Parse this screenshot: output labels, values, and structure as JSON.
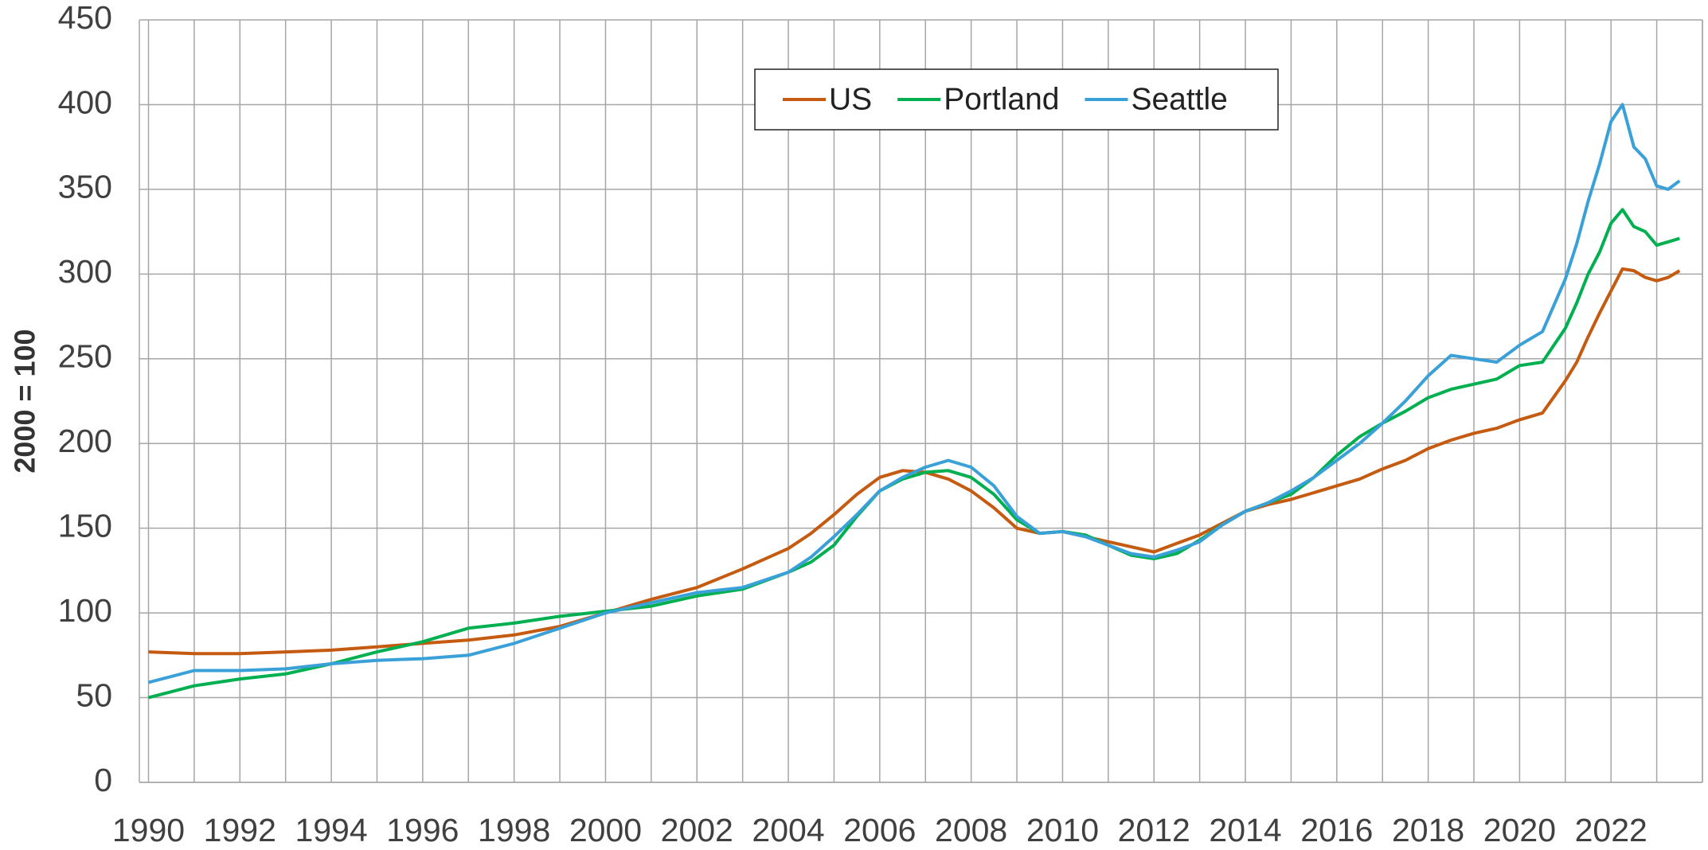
{
  "chart_data": {
    "type": "line",
    "y_label": "2000 = 100",
    "x": [
      1990,
      1991,
      1992,
      1993,
      1994,
      1995,
      1996,
      1997,
      1998,
      1999,
      2000,
      2001,
      2002,
      2003,
      2004,
      2004.5,
      2005,
      2005.5,
      2006,
      2006.5,
      2007,
      2007.5,
      2008,
      2008.5,
      2009,
      2009.5,
      2010,
      2010.5,
      2011,
      2011.5,
      2012,
      2012.5,
      2013,
      2013.5,
      2014,
      2014.5,
      2015,
      2015.5,
      2016,
      2016.5,
      2017,
      2017.5,
      2018,
      2018.5,
      2019,
      2019.5,
      2020,
      2020.5,
      2021,
      2021.25,
      2021.5,
      2021.75,
      2022,
      2022.25,
      2022.5,
      2022.75,
      2023,
      2023.25,
      2023.5
    ],
    "series": [
      {
        "name": "US",
        "color": "#c55a11",
        "values": [
          77,
          76,
          76,
          77,
          78,
          80,
          82,
          84,
          87,
          92,
          100,
          108,
          115,
          126,
          138,
          147,
          158,
          170,
          180,
          184,
          183,
          179,
          172,
          162,
          150,
          147,
          148,
          145,
          142,
          139,
          136,
          141,
          146,
          153,
          160,
          164,
          167,
          171,
          175,
          179,
          185,
          190,
          197,
          202,
          206,
          209,
          214,
          218,
          237,
          248,
          263,
          277,
          290,
          303,
          302,
          298,
          296,
          298,
          302
        ]
      },
      {
        "name": "Portland",
        "color": "#00b050",
        "values": [
          50,
          57,
          61,
          64,
          70,
          77,
          83,
          91,
          94,
          98,
          101,
          104,
          110,
          114,
          124,
          130,
          140,
          157,
          172,
          179,
          183,
          184,
          180,
          170,
          155,
          147,
          148,
          146,
          140,
          134,
          132,
          135,
          143,
          152,
          160,
          165,
          170,
          180,
          193,
          204,
          212,
          219,
          227,
          232,
          235,
          238,
          246,
          248,
          268,
          283,
          300,
          313,
          330,
          338,
          328,
          325,
          317,
          319,
          321
        ]
      },
      {
        "name": "Seattle",
        "color": "#3aa0d8",
        "values": [
          59,
          66,
          66,
          67,
          70,
          72,
          73,
          75,
          82,
          91,
          100,
          106,
          112,
          115,
          124,
          133,
          145,
          158,
          172,
          180,
          186,
          190,
          186,
          175,
          157,
          147,
          148,
          145,
          140,
          135,
          133,
          137,
          142,
          152,
          160,
          165,
          172,
          180,
          190,
          200,
          212,
          225,
          240,
          252,
          250,
          248,
          258,
          266,
          297,
          318,
          343,
          365,
          390,
          400,
          375,
          368,
          352,
          350,
          355
        ]
      }
    ],
    "xlim": [
      1989.8,
      2024
    ],
    "xticks": [
      1990,
      1992,
      1994,
      1996,
      1998,
      2000,
      2002,
      2004,
      2006,
      2008,
      2010,
      2012,
      2014,
      2016,
      2018,
      2020,
      2022
    ],
    "x_grid_step": 1,
    "ylim": [
      0,
      450
    ],
    "yticks": [
      0,
      50,
      100,
      150,
      200,
      250,
      300,
      350,
      400,
      450
    ],
    "grid": true,
    "legend": "top"
  }
}
